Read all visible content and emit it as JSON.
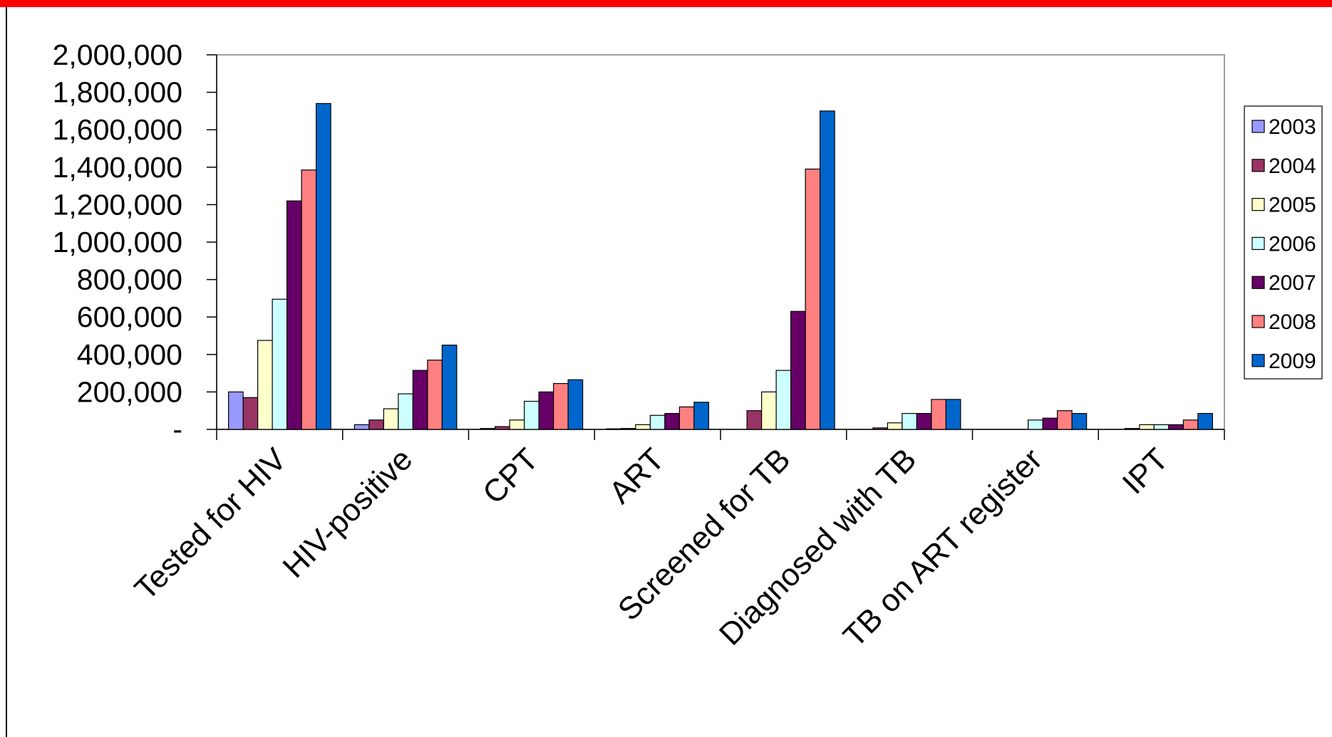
{
  "chart_data": {
    "type": "bar",
    "title": "",
    "xlabel": "",
    "ylabel": "",
    "ylim": [
      0,
      2000000
    ],
    "yticks": [
      {
        "value": 0,
        "label": "-"
      },
      {
        "value": 200000,
        "label": "200,000"
      },
      {
        "value": 400000,
        "label": "400,000"
      },
      {
        "value": 600000,
        "label": "600,000"
      },
      {
        "value": 800000,
        "label": "800,000"
      },
      {
        "value": 1000000,
        "label": "1,000,000"
      },
      {
        "value": 1200000,
        "label": "1,200,000"
      },
      {
        "value": 1400000,
        "label": "1,400,000"
      },
      {
        "value": 1600000,
        "label": "1,600,000"
      },
      {
        "value": 1800000,
        "label": "1,800,000"
      },
      {
        "value": 2000000,
        "label": "2,000,000"
      }
    ],
    "categories": [
      "Tested for HIV",
      "HIV-positive",
      "CPT",
      "ART",
      "Screened for TB",
      "Diagnosed with TB",
      "TB on ART register",
      "IPT"
    ],
    "legend_position": "right",
    "grid": false,
    "series": [
      {
        "name": "2003",
        "color": "#9999FF",
        "values": [
          200000,
          25000,
          5000,
          3000,
          0,
          0,
          0,
          0
        ]
      },
      {
        "name": "2004",
        "color": "#993366",
        "values": [
          170000,
          50000,
          15000,
          5000,
          100000,
          8000,
          0,
          5000
        ]
      },
      {
        "name": "2005",
        "color": "#FFFFCC",
        "values": [
          475000,
          110000,
          50000,
          25000,
          200000,
          35000,
          0,
          25000
        ]
      },
      {
        "name": "2006",
        "color": "#CCFFFF",
        "values": [
          695000,
          190000,
          150000,
          75000,
          315000,
          85000,
          50000,
          25000
        ]
      },
      {
        "name": "2007",
        "color": "#660066",
        "values": [
          1220000,
          315000,
          200000,
          85000,
          630000,
          85000,
          60000,
          25000
        ]
      },
      {
        "name": "2008",
        "color": "#FF8080",
        "values": [
          1385000,
          370000,
          245000,
          120000,
          1390000,
          160000,
          100000,
          50000
        ]
      },
      {
        "name": "2009",
        "color": "#0066CC",
        "values": [
          1740000,
          450000,
          265000,
          145000,
          1700000,
          160000,
          85000,
          85000
        ]
      }
    ]
  }
}
